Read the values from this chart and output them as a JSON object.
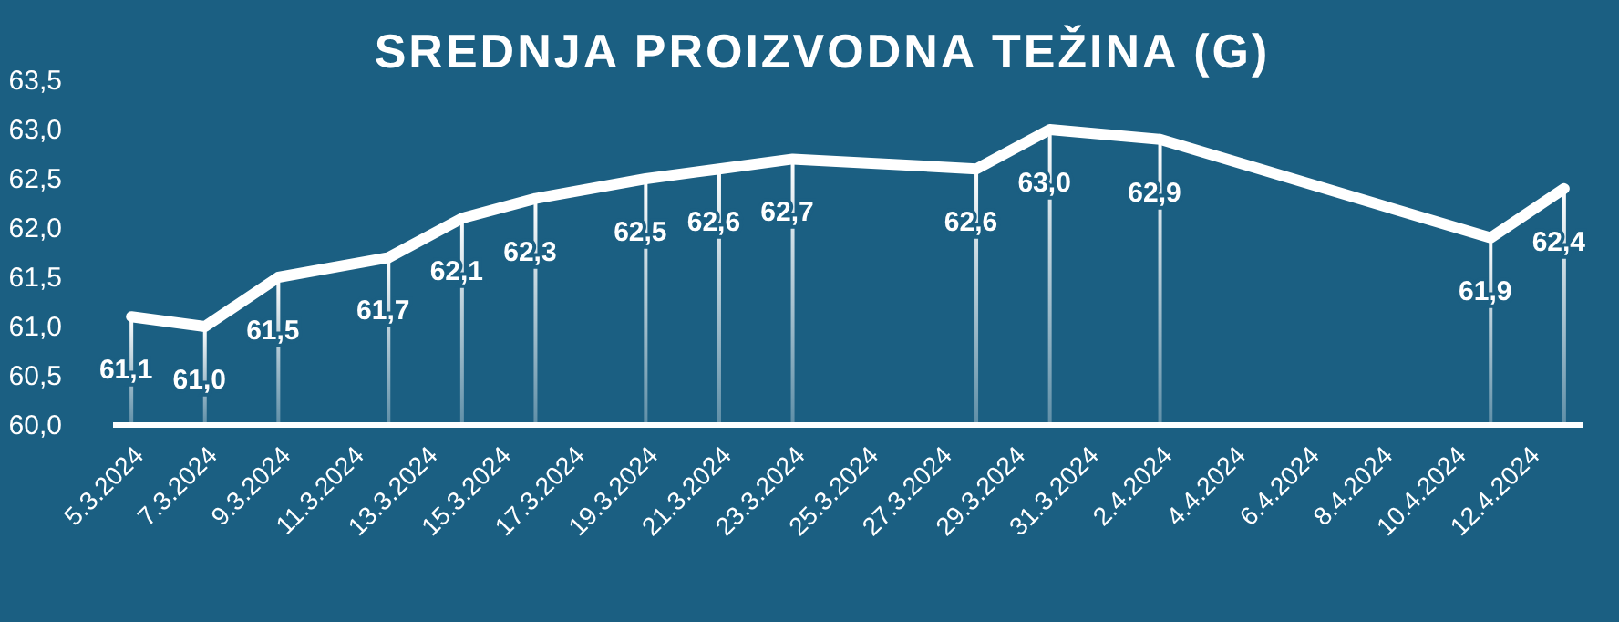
{
  "chart_data": {
    "type": "line",
    "title": "SREDNJA PROIZVODNA TEŽINA (G)",
    "x": [
      "2024-03-05",
      "2024-03-07",
      "2024-03-09",
      "2024-03-12",
      "2024-03-14",
      "2024-03-16",
      "2024-03-19",
      "2024-03-21",
      "2024-03-23",
      "2024-03-28",
      "2024-03-30",
      "2024-04-02",
      "2024-04-11",
      "2024-04-13"
    ],
    "series": [
      {
        "type": "bar",
        "color": "#ffffff",
        "values": [
          61.1,
          61.0,
          61.5,
          61.7,
          62.1,
          62.3,
          62.5,
          62.6,
          62.7,
          62.6,
          63.0,
          62.9,
          61.9,
          62.4
        ]
      },
      {
        "color": "#ffffff",
        "values": [
          61.1,
          61.0,
          61.5,
          61.7,
          62.1,
          62.3,
          62.5,
          62.6,
          62.7,
          62.6,
          63.0,
          62.9,
          61.9,
          62.4
        ],
        "value_labels": [
          "61,1",
          "61,0",
          "61,5",
          "61,7",
          "62,1",
          "62,3",
          "62,5",
          "62,6",
          "62,7",
          "62,6",
          "63,0",
          "62,9",
          "61,9",
          "62,4"
        ]
      }
    ],
    "xlim": [
      "2024-03-04T12:00",
      "2024-04-13T12:00"
    ],
    "xticks": [
      {
        "value": "2024-03-05",
        "label": "5.3.2024"
      },
      {
        "value": "2024-03-07",
        "label": "7.3.2024"
      },
      {
        "value": "2024-03-09",
        "label": "9.3.2024"
      },
      {
        "value": "2024-03-11",
        "label": "11.3.2024"
      },
      {
        "value": "2024-03-13",
        "label": "13.3.2024"
      },
      {
        "value": "2024-03-15",
        "label": "15.3.2024"
      },
      {
        "value": "2024-03-17",
        "label": "17.3.2024"
      },
      {
        "value": "2024-03-19",
        "label": "19.3.2024"
      },
      {
        "value": "2024-03-21",
        "label": "21.3.2024"
      },
      {
        "value": "2024-03-23",
        "label": "23.3.2024"
      },
      {
        "value": "2024-03-25",
        "label": "25.3.2024"
      },
      {
        "value": "2024-03-27",
        "label": "27.3.2024"
      },
      {
        "value": "2024-03-29",
        "label": "29.3.2024"
      },
      {
        "value": "2024-03-31",
        "label": "31.3.2024"
      },
      {
        "value": "2024-04-02",
        "label": "2.4.2024"
      },
      {
        "value": "2024-04-04",
        "label": "4.4.2024"
      },
      {
        "value": "2024-04-06",
        "label": "6.4.2024"
      },
      {
        "value": "2024-04-08",
        "label": "8.4.2024"
      },
      {
        "value": "2024-04-10",
        "label": "10.4.2024"
      },
      {
        "value": "2024-04-12",
        "label": "12.4.2024"
      }
    ],
    "ylim": [
      60,
      63.5
    ],
    "yticks": [
      {
        "value": 60,
        "label": "60,0"
      },
      {
        "value": 60.5,
        "label": "60,5"
      },
      {
        "value": 61,
        "label": "61,0"
      },
      {
        "value": 61.5,
        "label": "61,5"
      },
      {
        "value": 62,
        "label": "62,0"
      },
      {
        "value": 62.5,
        "label": "62,5"
      },
      {
        "value": 63,
        "label": "63,0"
      },
      {
        "value": 63.5,
        "label": "63,5"
      }
    ],
    "grid": false,
    "marker": "none",
    "line_style": "solid"
  }
}
